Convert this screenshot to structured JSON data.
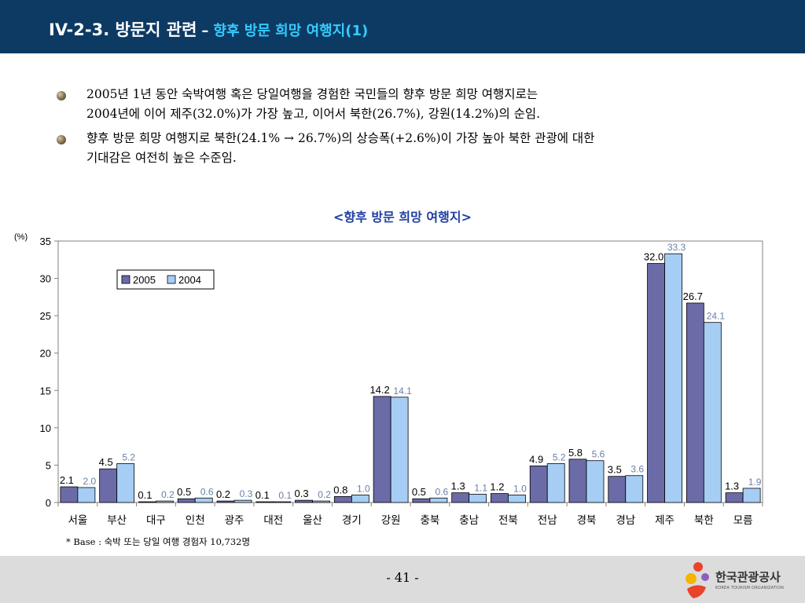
{
  "header": {
    "title_main": "IV-2-3. 방문지 관련",
    "title_dash": "–",
    "title_sub": "향후 방문 희망 여행지(1)"
  },
  "bullets": [
    {
      "line1": "2005년 1년 동안 숙박여행 혹은 당일여행을 경험한 국민들의 향후 방문 희망 여행지로는",
      "line2": "2004년에 이어 제주(32.0%)가 가장 높고, 이어서 북한(26.7%), 강원(14.2%)의 순임."
    },
    {
      "line1": "향후 방문 희망 여행지로 북한(24.1% → 26.7%)의 상승폭(+2.6%)이 가장 높아 북한 관광에 대한",
      "line2": "기대감은 여전히 높은 수준임."
    }
  ],
  "chart_data": {
    "type": "bar",
    "title": "<향후 방문 희망 여행지>",
    "ylabel": "(%)",
    "xlabel": "",
    "ylim": [
      0,
      35
    ],
    "yticks": [
      0,
      5,
      10,
      15,
      20,
      25,
      30,
      35
    ],
    "grid": false,
    "legend_position": "top-left",
    "categories": [
      "서울",
      "부산",
      "대구",
      "인천",
      "광주",
      "대전",
      "울산",
      "경기",
      "강원",
      "충북",
      "충남",
      "전북",
      "전남",
      "경북",
      "경남",
      "제주",
      "북한",
      "모름"
    ],
    "series": [
      {
        "name": "2005",
        "color": "#6b6ba8",
        "values": [
          2.1,
          4.5,
          0.1,
          0.5,
          0.2,
          0.1,
          0.3,
          0.8,
          14.2,
          0.5,
          1.3,
          1.2,
          4.9,
          5.8,
          3.5,
          32.0,
          26.7,
          1.3
        ]
      },
      {
        "name": "2004",
        "color": "#a6cef5",
        "values": [
          2.0,
          5.2,
          0.2,
          0.6,
          0.3,
          0.1,
          0.2,
          1.0,
          14.1,
          0.6,
          1.1,
          1.0,
          5.2,
          5.6,
          3.6,
          33.3,
          24.1,
          1.9
        ]
      }
    ],
    "labels_2005": [
      "2.1",
      "4.5",
      "0.1",
      "0.5",
      "0.2",
      "0.1",
      "0.3",
      "0.8",
      "14.2",
      "0.5",
      "1.3",
      "1.2",
      "4.9",
      "5.8",
      "3.5",
      "32.0",
      "26.7",
      "1.3"
    ],
    "labels_2004": [
      "2.0",
      "5.2",
      "0.2",
      "0.6",
      "0.3",
      "0.1",
      "0.2",
      "1.0",
      "14.1",
      "0.6",
      "1.1",
      "1.0",
      "5.2",
      "5.6",
      "3.6",
      "33.3",
      "24.1",
      "1.9"
    ],
    "note": "* Base : 숙박 또는 당일 여행 경험자  10,732명"
  },
  "footer": {
    "page_number": "- 41 -",
    "logo_text": "한국관광공사",
    "logo_sub": "KOREA TOURISM ORGANIZATION"
  },
  "colors": {
    "header_bg": "#0d3a63",
    "title_sub": "#33ccff",
    "chart_title": "#1f3fa0",
    "footer_bg": "#dcdcdc"
  }
}
